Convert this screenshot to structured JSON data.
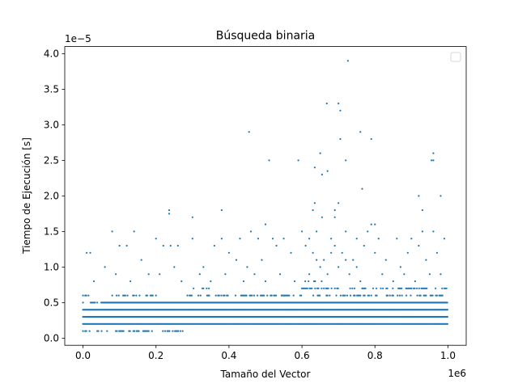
{
  "chart_data": {
    "type": "scatter",
    "title": "Búsqueda binaria",
    "xlabel": "Tamaño del Vector",
    "ylabel": "Tiempo de Ejecución [s]",
    "x_offset_text": "1e6",
    "y_offset_text": "1e−5",
    "x_scale": 1000000,
    "y_scale": 1e-05,
    "xlim": [
      -0.05,
      1.05
    ],
    "ylim": [
      -0.1,
      4.1
    ],
    "xticks": [
      0.0,
      0.2,
      0.4,
      0.6,
      0.8,
      1.0
    ],
    "xtick_labels": [
      "0.0",
      "0.2",
      "0.4",
      "0.6",
      "0.8",
      "1.0"
    ],
    "yticks": [
      0.0,
      0.5,
      1.0,
      1.5,
      2.0,
      2.5,
      3.0,
      3.5,
      4.0
    ],
    "ytick_labels": [
      "0.0",
      "0.5",
      "1.0",
      "1.5",
      "2.0",
      "2.5",
      "3.0",
      "3.5",
      "4.0"
    ],
    "marker_color": "#1f77b4",
    "legend": {
      "position": "top-right",
      "entries": []
    },
    "dense_bands": [
      {
        "y": 0.2,
        "x_range": [
          0.0,
          1.0
        ]
      },
      {
        "y": 0.3,
        "x_range": [
          0.0,
          1.0
        ]
      },
      {
        "y": 0.4,
        "x_range": [
          0.0,
          1.0
        ]
      },
      {
        "y": 0.5,
        "x_range": [
          0.05,
          1.0
        ]
      }
    ],
    "sparse_bands": [
      {
        "y": 0.1,
        "ranges": [
          [
            0.0,
            0.28
          ]
        ]
      },
      {
        "y": 0.5,
        "ranges": [
          [
            0.0,
            0.05
          ]
        ]
      },
      {
        "y": 0.6,
        "ranges": [
          [
            0.0,
            0.02
          ],
          [
            0.08,
            0.2
          ],
          [
            0.28,
            1.0
          ]
        ]
      },
      {
        "y": 0.7,
        "ranges": [
          [
            0.3,
            0.35
          ],
          [
            0.6,
            1.0
          ]
        ]
      },
      {
        "y": 0.8,
        "ranges": [
          [
            0.6,
            0.66
          ]
        ]
      }
    ],
    "points": [
      [
        0.726,
        3.9
      ],
      [
        0.668,
        3.3
      ],
      [
        0.7,
        3.3
      ],
      [
        0.705,
        3.2
      ],
      [
        0.455,
        2.9
      ],
      [
        0.76,
        2.9
      ],
      [
        0.705,
        2.8
      ],
      [
        0.79,
        2.8
      ],
      [
        0.96,
        2.6
      ],
      [
        0.65,
        2.6
      ],
      [
        0.72,
        2.5
      ],
      [
        0.51,
        2.5
      ],
      [
        0.59,
        2.5
      ],
      [
        0.955,
        2.5
      ],
      [
        0.96,
        2.5
      ],
      [
        0.635,
        2.4
      ],
      [
        0.67,
        2.35
      ],
      [
        0.655,
        2.3
      ],
      [
        0.765,
        2.1
      ],
      [
        0.92,
        2.0
      ],
      [
        0.98,
        2.0
      ],
      [
        0.635,
        1.9
      ],
      [
        0.7,
        1.9
      ],
      [
        0.236,
        1.8
      ],
      [
        0.38,
        1.8
      ],
      [
        0.236,
        1.75
      ],
      [
        0.3,
        1.7
      ],
      [
        0.63,
        1.8
      ],
      [
        0.69,
        1.8
      ],
      [
        0.93,
        1.8
      ],
      [
        0.5,
        1.6
      ],
      [
        0.655,
        1.7
      ],
      [
        0.79,
        1.6
      ],
      [
        0.8,
        1.6
      ],
      [
        0.69,
        1.7
      ],
      [
        0.01,
        1.2
      ],
      [
        0.02,
        1.2
      ],
      [
        0.08,
        1.5
      ],
      [
        0.14,
        1.5
      ],
      [
        0.2,
        1.4
      ],
      [
        0.22,
        1.3
      ],
      [
        0.24,
        1.3
      ],
      [
        0.26,
        1.3
      ],
      [
        0.3,
        1.4
      ],
      [
        0.38,
        1.4
      ],
      [
        0.43,
        1.4
      ],
      [
        0.46,
        1.5
      ],
      [
        0.48,
        1.4
      ],
      [
        0.52,
        1.4
      ],
      [
        0.55,
        1.4
      ],
      [
        0.6,
        1.5
      ],
      [
        0.62,
        1.4
      ],
      [
        0.64,
        1.5
      ],
      [
        0.68,
        1.4
      ],
      [
        0.72,
        1.5
      ],
      [
        0.75,
        1.4
      ],
      [
        0.78,
        1.5
      ],
      [
        0.81,
        1.4
      ],
      [
        0.86,
        1.4
      ],
      [
        0.9,
        1.4
      ],
      [
        0.93,
        1.5
      ],
      [
        0.96,
        1.5
      ],
      [
        0.99,
        1.4
      ],
      [
        0.06,
        1.0
      ],
      [
        0.1,
        1.3
      ],
      [
        0.12,
        1.3
      ],
      [
        0.16,
        1.1
      ],
      [
        0.18,
        0.9
      ],
      [
        0.25,
        1.0
      ],
      [
        0.33,
        1.0
      ],
      [
        0.36,
        1.3
      ],
      [
        0.4,
        1.2
      ],
      [
        0.42,
        1.1
      ],
      [
        0.45,
        1.0
      ],
      [
        0.49,
        1.1
      ],
      [
        0.53,
        1.3
      ],
      [
        0.57,
        1.2
      ],
      [
        0.61,
        1.3
      ],
      [
        0.63,
        1.2
      ],
      [
        0.66,
        1.1
      ],
      [
        0.69,
        1.3
      ],
      [
        0.71,
        1.2
      ],
      [
        0.74,
        1.1
      ],
      [
        0.77,
        1.3
      ],
      [
        0.8,
        1.2
      ],
      [
        0.83,
        1.1
      ],
      [
        0.87,
        1.0
      ],
      [
        0.89,
        1.2
      ],
      [
        0.92,
        1.3
      ],
      [
        0.94,
        1.1
      ],
      [
        0.97,
        1.2
      ],
      [
        0.98,
        0.9
      ],
      [
        0.03,
        0.8
      ],
      [
        0.09,
        0.9
      ],
      [
        0.13,
        0.8
      ],
      [
        0.21,
        0.9
      ],
      [
        0.27,
        0.8
      ],
      [
        0.32,
        0.9
      ],
      [
        0.35,
        0.8
      ],
      [
        0.39,
        0.9
      ],
      [
        0.44,
        0.8
      ],
      [
        0.47,
        0.9
      ],
      [
        0.5,
        0.8
      ],
      [
        0.54,
        0.9
      ],
      [
        0.58,
        0.8
      ],
      [
        0.62,
        0.9
      ],
      [
        0.67,
        0.9
      ],
      [
        0.73,
        0.9
      ],
      [
        0.76,
        0.8
      ],
      [
        0.82,
        0.9
      ],
      [
        0.85,
        0.8
      ],
      [
        0.88,
        0.9
      ],
      [
        0.91,
        0.8
      ],
      [
        0.95,
        0.9
      ],
      [
        0.65,
        1.0
      ],
      [
        0.7,
        1.0
      ],
      [
        0.75,
        1.0
      ],
      [
        0.68,
        1.2
      ],
      [
        0.72,
        1.1
      ],
      [
        0.64,
        1.1
      ]
    ]
  }
}
